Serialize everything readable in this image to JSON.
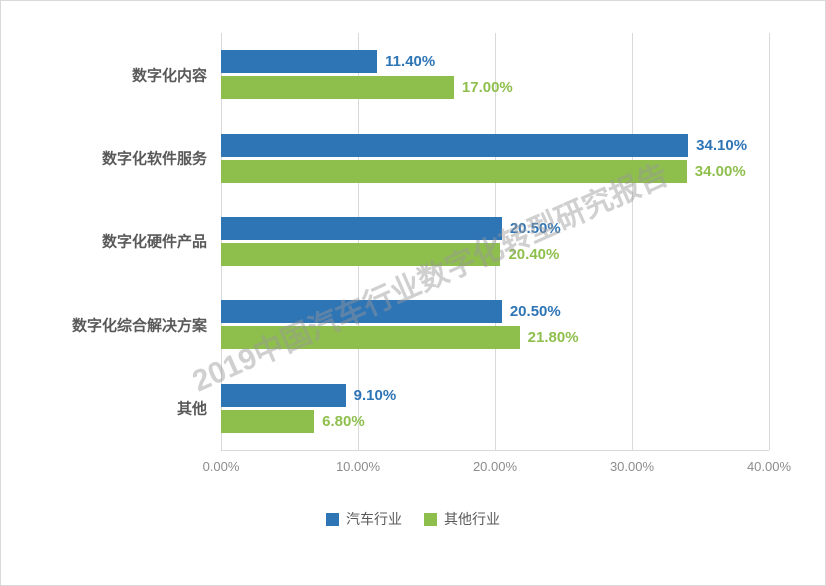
{
  "watermark": "2019中国汽车行业数字化转型研究报告",
  "legend": [
    {
      "label": "汽车行业",
      "color": "#2e75b6"
    },
    {
      "label": "其他行业",
      "color": "#8ebf4d"
    }
  ],
  "chart_data": {
    "type": "bar",
    "orientation": "horizontal",
    "title": "",
    "categories": [
      "数字化内容",
      "数字化软件服务",
      "数字化硬件产品",
      "数字化综合解决方案",
      "其他"
    ],
    "series": [
      {
        "name": "汽车行业",
        "color": "#2e75b6",
        "values": [
          11.4,
          34.1,
          20.5,
          20.5,
          9.1
        ]
      },
      {
        "name": "其他行业",
        "color": "#8ebf4d",
        "values": [
          17.0,
          34.0,
          20.4,
          21.8,
          6.8
        ]
      }
    ],
    "x_ticks": [
      "0.00%",
      "10.00%",
      "20.00%",
      "30.00%",
      "40.00%"
    ],
    "xlim": [
      0,
      40
    ],
    "grid": true,
    "legend_position": "bottom",
    "value_label_suffix": "%"
  }
}
